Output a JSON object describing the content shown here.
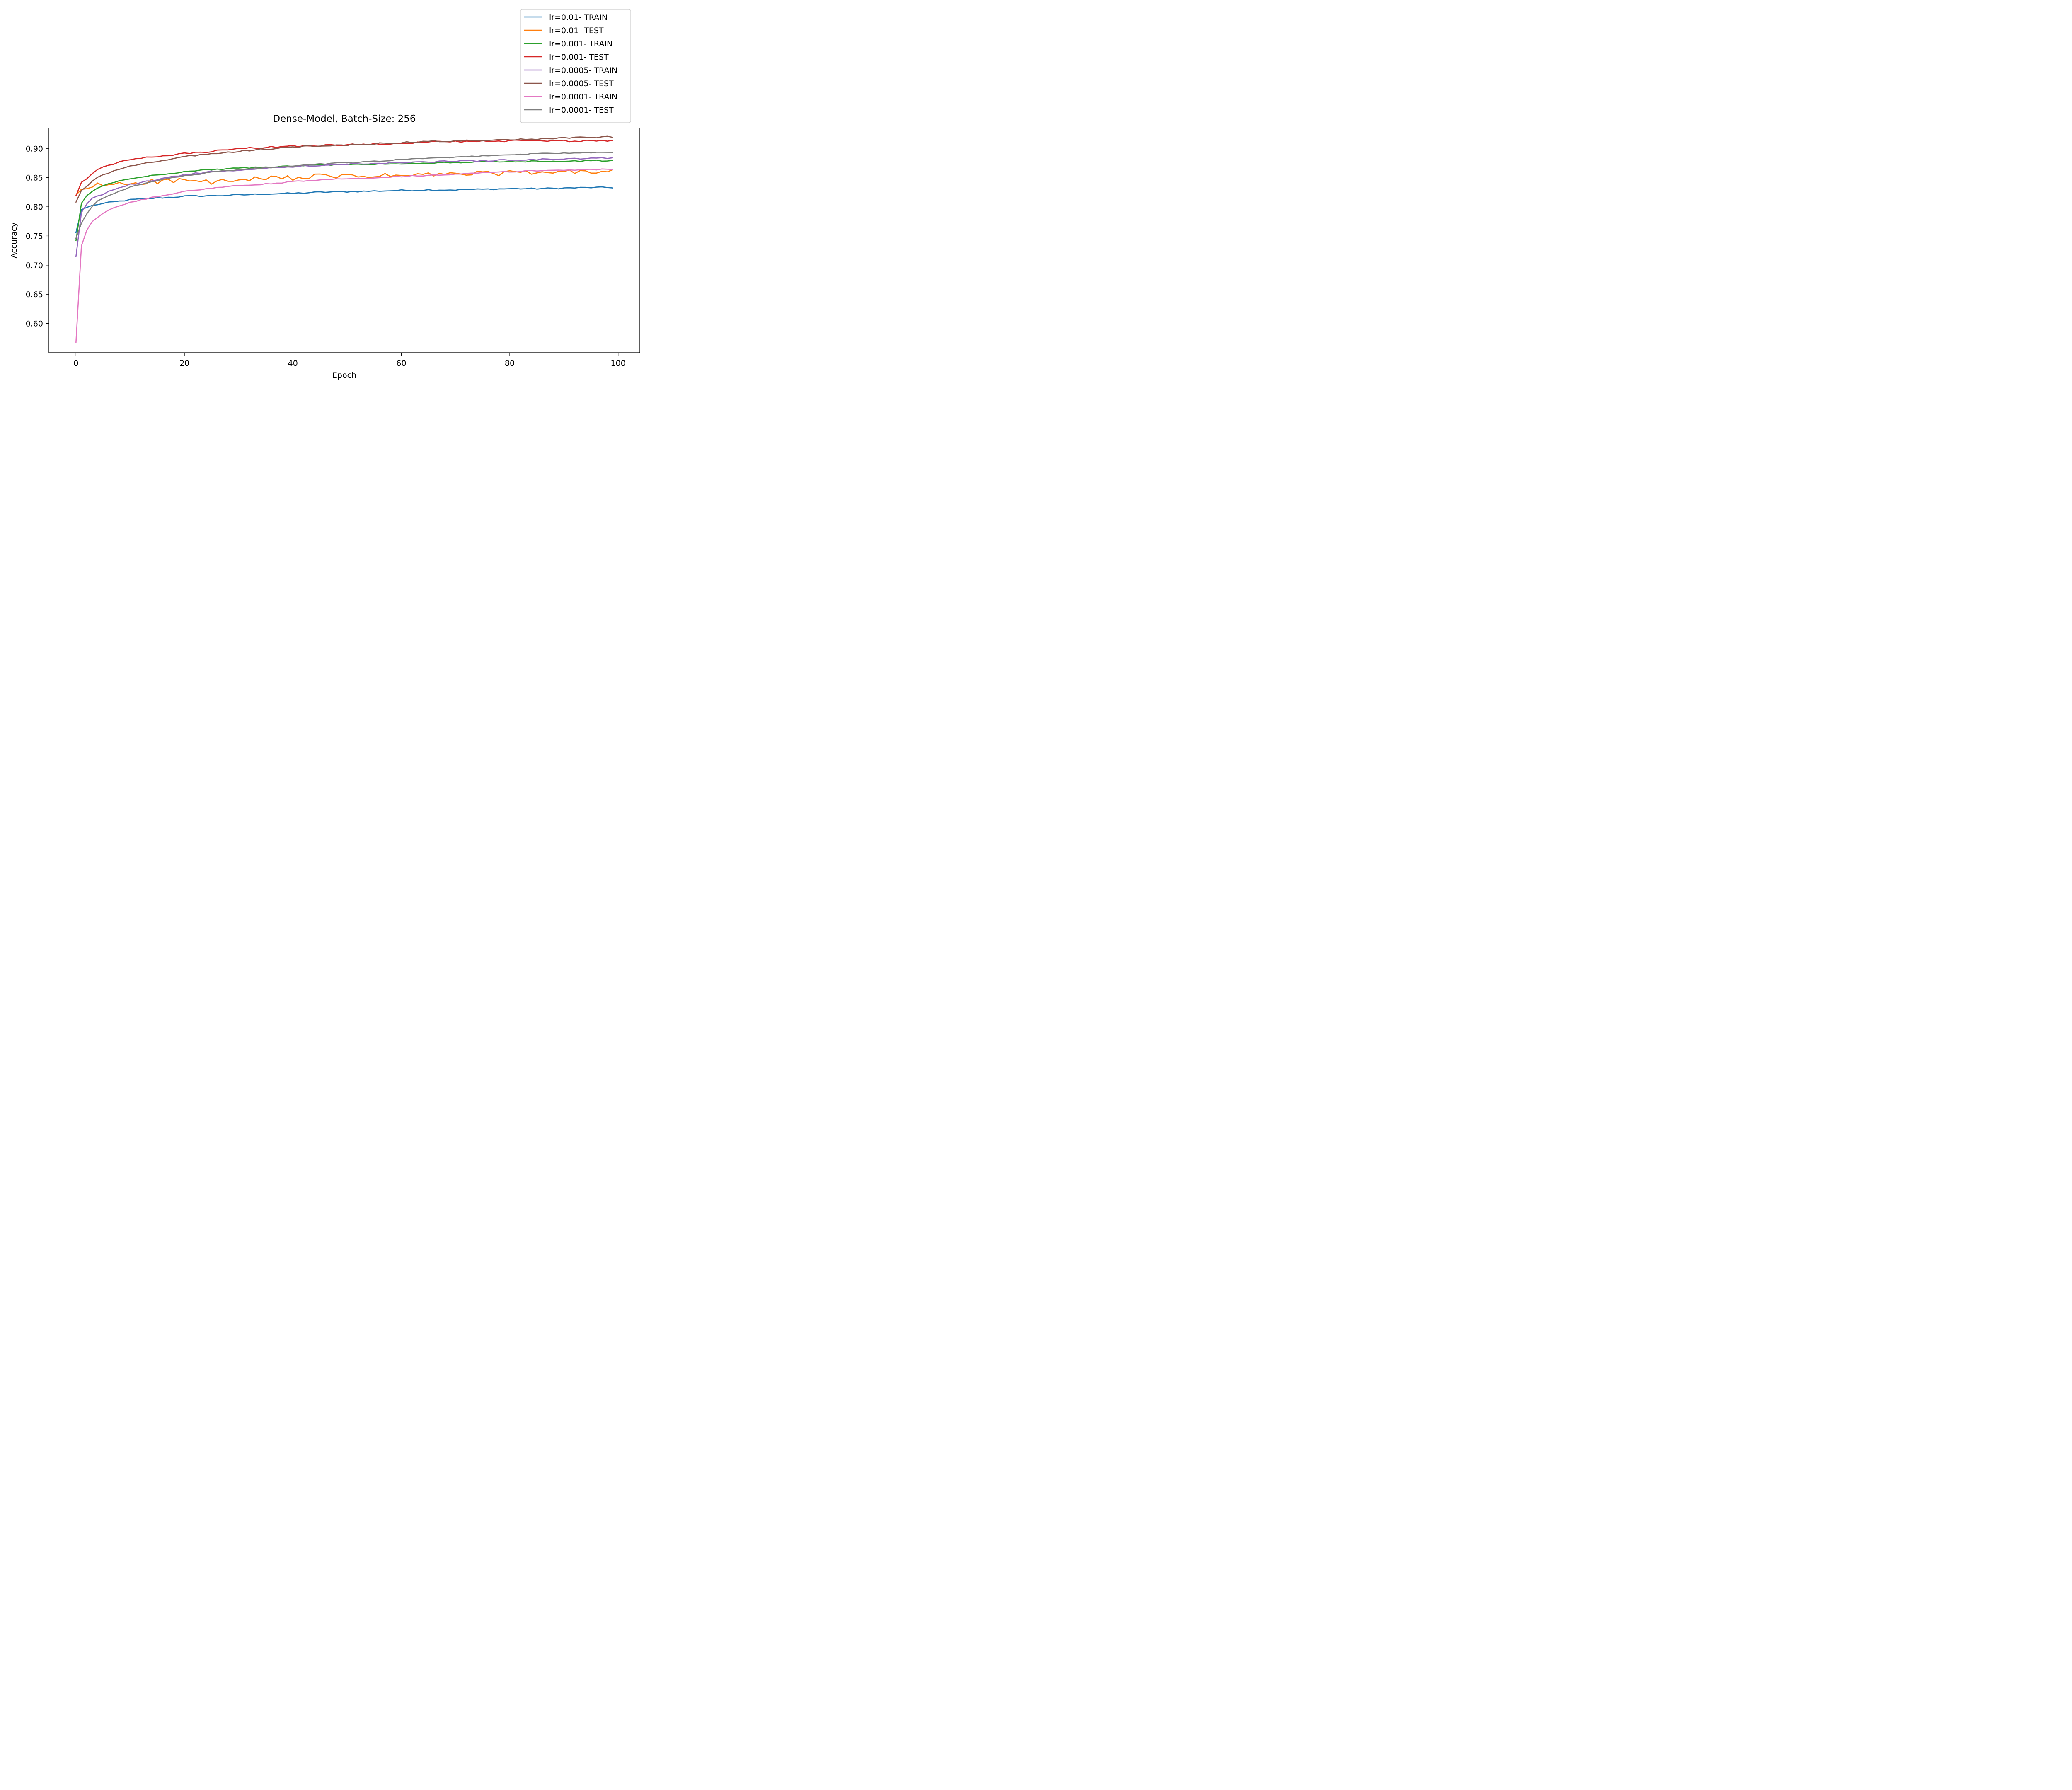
{
  "chart_data": {
    "type": "line",
    "title": "Dense-Model, Batch-Size: 256",
    "xlabel": "Epoch",
    "ylabel": "Accuracy",
    "xlim": [
      -5,
      104
    ],
    "ylim": [
      0.55,
      0.935
    ],
    "xticks": [
      0,
      20,
      40,
      60,
      80,
      100
    ],
    "yticks": [
      0.6,
      0.65,
      0.7,
      0.75,
      0.8,
      0.85,
      0.9
    ],
    "grid": false,
    "legend_position": "upper right, outside above axes",
    "series": [
      {
        "name": "lr=0.01- TRAIN",
        "color": "#1f77b4",
        "anchors": [
          [
            0,
            0.756
          ],
          [
            1,
            0.795
          ],
          [
            2,
            0.799
          ],
          [
            3,
            0.802
          ],
          [
            4,
            0.804
          ],
          [
            6,
            0.807
          ],
          [
            10,
            0.812
          ],
          [
            15,
            0.815
          ],
          [
            20,
            0.818
          ],
          [
            25,
            0.819
          ],
          [
            30,
            0.82
          ],
          [
            35,
            0.822
          ],
          [
            40,
            0.823
          ],
          [
            45,
            0.825
          ],
          [
            50,
            0.826
          ],
          [
            55,
            0.827
          ],
          [
            60,
            0.828
          ],
          [
            65,
            0.829
          ],
          [
            70,
            0.829
          ],
          [
            75,
            0.83
          ],
          [
            80,
            0.831
          ],
          [
            85,
            0.831
          ],
          [
            90,
            0.832
          ],
          [
            95,
            0.833
          ],
          [
            99,
            0.833
          ]
        ],
        "noise": 0.0012
      },
      {
        "name": "lr=0.01- TEST",
        "color": "#ff7f0e",
        "anchors": [
          [
            0,
            0.82
          ],
          [
            1,
            0.83
          ],
          [
            2,
            0.831
          ],
          [
            3,
            0.832
          ],
          [
            4,
            0.837
          ],
          [
            6,
            0.838
          ],
          [
            10,
            0.841
          ],
          [
            15,
            0.844
          ],
          [
            20,
            0.845
          ],
          [
            25,
            0.842
          ],
          [
            30,
            0.845
          ],
          [
            35,
            0.848
          ],
          [
            40,
            0.85
          ],
          [
            45,
            0.852
          ],
          [
            50,
            0.852
          ],
          [
            55,
            0.853
          ],
          [
            60,
            0.853
          ],
          [
            65,
            0.855
          ],
          [
            70,
            0.856
          ],
          [
            75,
            0.857
          ],
          [
            80,
            0.858
          ],
          [
            85,
            0.858
          ],
          [
            90,
            0.859
          ],
          [
            95,
            0.86
          ],
          [
            99,
            0.861
          ]
        ],
        "noise": 0.0045
      },
      {
        "name": "lr=0.001- TRAIN",
        "color": "#2ca02c",
        "anchors": [
          [
            0,
            0.742
          ],
          [
            1,
            0.806
          ],
          [
            2,
            0.819
          ],
          [
            3,
            0.826
          ],
          [
            4,
            0.832
          ],
          [
            6,
            0.84
          ],
          [
            8,
            0.844
          ],
          [
            10,
            0.848
          ],
          [
            15,
            0.855
          ],
          [
            20,
            0.86
          ],
          [
            25,
            0.864
          ],
          [
            30,
            0.866
          ],
          [
            35,
            0.868
          ],
          [
            40,
            0.87
          ],
          [
            45,
            0.872
          ],
          [
            50,
            0.872
          ],
          [
            55,
            0.873
          ],
          [
            60,
            0.874
          ],
          [
            65,
            0.875
          ],
          [
            70,
            0.876
          ],
          [
            75,
            0.877
          ],
          [
            80,
            0.877
          ],
          [
            85,
            0.878
          ],
          [
            90,
            0.878
          ],
          [
            95,
            0.879
          ],
          [
            99,
            0.879
          ]
        ],
        "noise": 0.001
      },
      {
        "name": "lr=0.001- TEST",
        "color": "#d62728",
        "anchors": [
          [
            0,
            0.819
          ],
          [
            1,
            0.842
          ],
          [
            2,
            0.848
          ],
          [
            3,
            0.856
          ],
          [
            4,
            0.865
          ],
          [
            6,
            0.87
          ],
          [
            8,
            0.876
          ],
          [
            10,
            0.881
          ],
          [
            15,
            0.886
          ],
          [
            20,
            0.891
          ],
          [
            25,
            0.895
          ],
          [
            30,
            0.899
          ],
          [
            35,
            0.902
          ],
          [
            40,
            0.904
          ],
          [
            45,
            0.905
          ],
          [
            50,
            0.906
          ],
          [
            55,
            0.908
          ],
          [
            60,
            0.909
          ],
          [
            65,
            0.911
          ],
          [
            70,
            0.912
          ],
          [
            75,
            0.912
          ],
          [
            80,
            0.913
          ],
          [
            85,
            0.913
          ],
          [
            90,
            0.913
          ],
          [
            95,
            0.913
          ],
          [
            99,
            0.913
          ]
        ],
        "noise": 0.0015
      },
      {
        "name": "lr=0.0005- TRAIN",
        "color": "#9467bd",
        "anchors": [
          [
            0,
            0.715
          ],
          [
            1,
            0.79
          ],
          [
            2,
            0.805
          ],
          [
            3,
            0.814
          ],
          [
            4,
            0.818
          ],
          [
            6,
            0.826
          ],
          [
            8,
            0.832
          ],
          [
            10,
            0.838
          ],
          [
            15,
            0.847
          ],
          [
            20,
            0.855
          ],
          [
            25,
            0.86
          ],
          [
            30,
            0.863
          ],
          [
            35,
            0.866
          ],
          [
            40,
            0.869
          ],
          [
            45,
            0.871
          ],
          [
            50,
            0.873
          ],
          [
            55,
            0.874
          ],
          [
            60,
            0.876
          ],
          [
            65,
            0.877
          ],
          [
            70,
            0.878
          ],
          [
            75,
            0.879
          ],
          [
            80,
            0.88
          ],
          [
            85,
            0.881
          ],
          [
            90,
            0.882
          ],
          [
            95,
            0.883
          ],
          [
            99,
            0.883
          ]
        ],
        "noise": 0.0012
      },
      {
        "name": "lr=0.0005- TEST",
        "color": "#8c564b",
        "anchors": [
          [
            0,
            0.808
          ],
          [
            1,
            0.828
          ],
          [
            2,
            0.835
          ],
          [
            3,
            0.843
          ],
          [
            4,
            0.851
          ],
          [
            6,
            0.858
          ],
          [
            8,
            0.865
          ],
          [
            10,
            0.869
          ],
          [
            15,
            0.878
          ],
          [
            20,
            0.886
          ],
          [
            25,
            0.891
          ],
          [
            30,
            0.895
          ],
          [
            35,
            0.899
          ],
          [
            40,
            0.902
          ],
          [
            45,
            0.905
          ],
          [
            50,
            0.906
          ],
          [
            55,
            0.908
          ],
          [
            60,
            0.91
          ],
          [
            65,
            0.912
          ],
          [
            70,
            0.913
          ],
          [
            75,
            0.914
          ],
          [
            80,
            0.915
          ],
          [
            85,
            0.916
          ],
          [
            90,
            0.918
          ],
          [
            95,
            0.919
          ],
          [
            99,
            0.92
          ]
        ],
        "noise": 0.0012
      },
      {
        "name": "lr=0.0001- TRAIN",
        "color": "#e377c2",
        "anchors": [
          [
            0,
            0.568
          ],
          [
            1,
            0.733
          ],
          [
            2,
            0.76
          ],
          [
            3,
            0.774
          ],
          [
            4,
            0.781
          ],
          [
            6,
            0.795
          ],
          [
            8,
            0.802
          ],
          [
            10,
            0.807
          ],
          [
            15,
            0.818
          ],
          [
            20,
            0.826
          ],
          [
            25,
            0.832
          ],
          [
            30,
            0.836
          ],
          [
            35,
            0.839
          ],
          [
            40,
            0.843
          ],
          [
            45,
            0.846
          ],
          [
            50,
            0.848
          ],
          [
            55,
            0.85
          ],
          [
            60,
            0.852
          ],
          [
            65,
            0.854
          ],
          [
            70,
            0.856
          ],
          [
            75,
            0.858
          ],
          [
            80,
            0.86
          ],
          [
            85,
            0.862
          ],
          [
            90,
            0.863
          ],
          [
            95,
            0.864
          ],
          [
            99,
            0.864
          ]
        ],
        "noise": 0.0009
      },
      {
        "name": "lr=0.0001- TEST",
        "color": "#7f7f7f",
        "anchors": [
          [
            0,
            0.746
          ],
          [
            1,
            0.772
          ],
          [
            2,
            0.788
          ],
          [
            3,
            0.8
          ],
          [
            4,
            0.81
          ],
          [
            6,
            0.819
          ],
          [
            8,
            0.827
          ],
          [
            10,
            0.834
          ],
          [
            15,
            0.845
          ],
          [
            20,
            0.853
          ],
          [
            25,
            0.859
          ],
          [
            30,
            0.864
          ],
          [
            35,
            0.867
          ],
          [
            40,
            0.87
          ],
          [
            45,
            0.873
          ],
          [
            50,
            0.876
          ],
          [
            55,
            0.878
          ],
          [
            60,
            0.881
          ],
          [
            65,
            0.883
          ],
          [
            70,
            0.885
          ],
          [
            75,
            0.887
          ],
          [
            80,
            0.889
          ],
          [
            85,
            0.891
          ],
          [
            90,
            0.892
          ],
          [
            95,
            0.893
          ],
          [
            99,
            0.894
          ]
        ],
        "noise": 0.0009
      }
    ]
  }
}
